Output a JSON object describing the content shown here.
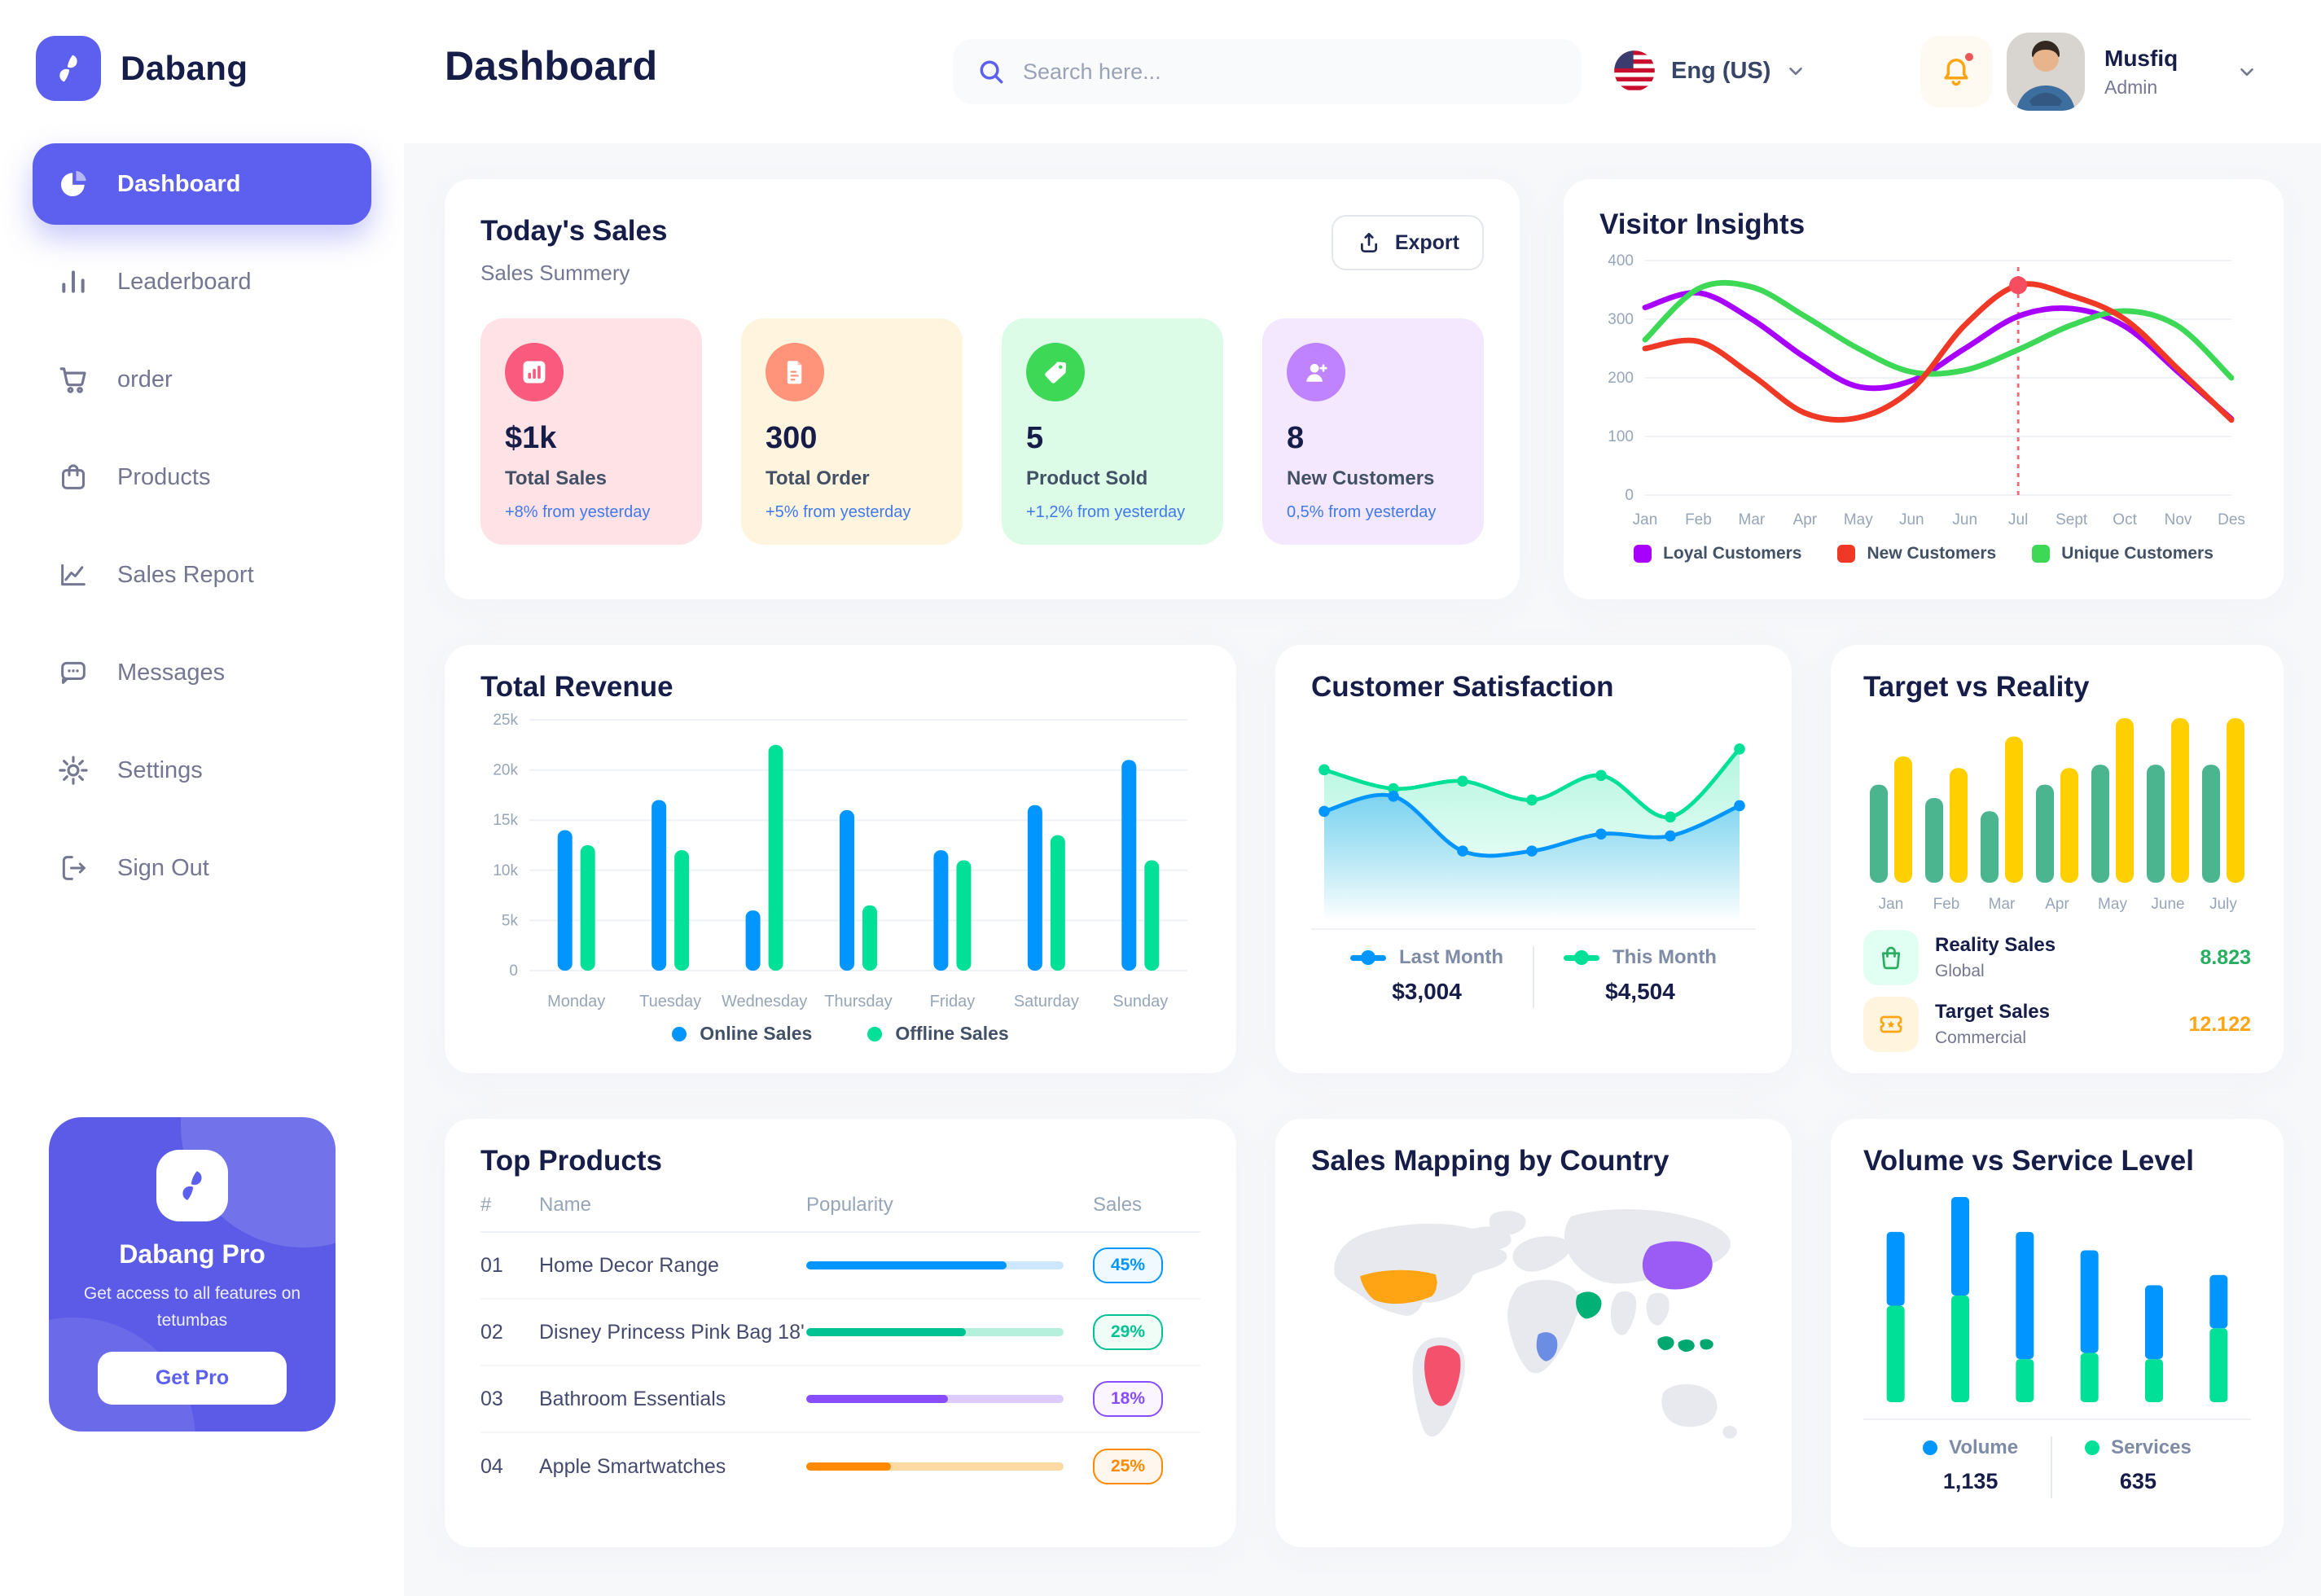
{
  "app": {
    "brand": "Dabang",
    "accent_color": "#5D5FEF"
  },
  "header": {
    "title": "Dashboard",
    "search": {
      "placeholder": "Search here..."
    },
    "language": {
      "label": "Eng (US)"
    },
    "user": {
      "name": "Musfiq",
      "role": "Admin"
    }
  },
  "sidebar": {
    "items": [
      {
        "label": "Dashboard",
        "icon": "pie-chart-icon",
        "active": true
      },
      {
        "label": "Leaderboard",
        "icon": "bar-chart-icon",
        "active": false
      },
      {
        "label": "order",
        "icon": "cart-icon",
        "active": false
      },
      {
        "label": "Products",
        "icon": "bag-icon",
        "active": false
      },
      {
        "label": "Sales Report",
        "icon": "line-chart-icon",
        "active": false
      },
      {
        "label": "Messages",
        "icon": "message-icon",
        "active": false
      },
      {
        "label": "Settings",
        "icon": "gear-icon",
        "active": false
      },
      {
        "label": "Sign Out",
        "icon": "sign-out-icon",
        "active": false
      }
    ],
    "pro_card": {
      "title": "Dabang Pro",
      "description": "Get access to all features on tetumbas",
      "cta": "Get Pro"
    }
  },
  "todays_sales": {
    "title": "Today's Sales",
    "subtitle": "Sales Summery",
    "export_label": "Export",
    "cards": [
      {
        "value": "$1k",
        "label": "Total Sales",
        "delta": "+8% from yesterday",
        "bg": "#FFE2E5",
        "icon_bg": "#FA5A7D",
        "icon": "stats-icon"
      },
      {
        "value": "300",
        "label": "Total Order",
        "delta": "+5% from yesterday",
        "bg": "#FFF4DE",
        "icon_bg": "#FF947A",
        "icon": "receipt-icon"
      },
      {
        "value": "5",
        "label": "Product Sold",
        "delta": "+1,2% from yesterday",
        "bg": "#DCFCE7",
        "icon_bg": "#3CD856",
        "icon": "tag-icon"
      },
      {
        "value": "8",
        "label": "New Customers",
        "delta": "0,5% from yesterday",
        "bg": "#F3E8FF",
        "icon_bg": "#BF83FF",
        "icon": "user-plus-icon"
      }
    ]
  },
  "charts": {
    "visitor_insights": {
      "title": "Visitor Insights",
      "type": "line",
      "categories": [
        "Jan",
        "Feb",
        "Mar",
        "Apr",
        "May",
        "Jun",
        "Jun",
        "Jul",
        "Sept",
        "Oct",
        "Nov",
        "Des"
      ],
      "ylim": [
        0,
        400
      ],
      "yticks": [
        0,
        100,
        200,
        300,
        400
      ],
      "series": [
        {
          "name": "Loyal Customers",
          "color": "#A700FF",
          "values": [
            320,
            345,
            300,
            235,
            185,
            195,
            250,
            305,
            318,
            288,
            210,
            130
          ]
        },
        {
          "name": "New Customers",
          "color": "#EF3826",
          "values": [
            250,
            262,
            205,
            140,
            132,
            180,
            290,
            358,
            340,
            300,
            215,
            128
          ]
        },
        {
          "name": "Unique Customers",
          "color": "#3CD856",
          "values": [
            265,
            352,
            355,
            305,
            250,
            210,
            213,
            248,
            290,
            314,
            288,
            200
          ]
        }
      ],
      "highlight": {
        "category_index": 7,
        "series": "New Customers",
        "marker_color": "#F64E60"
      }
    },
    "total_revenue": {
      "title": "Total Revenue",
      "type": "bar",
      "categories": [
        "Monday",
        "Tuesday",
        "Wednesday",
        "Thursday",
        "Friday",
        "Saturday",
        "Sunday"
      ],
      "ylim": [
        0,
        25
      ],
      "ytick_labels": [
        "0",
        "5k",
        "10k",
        "15k",
        "20k",
        "25k"
      ],
      "series": [
        {
          "name": "Online Sales",
          "color": "#0095FF",
          "values": [
            14,
            17,
            6,
            16,
            12,
            16.5,
            21
          ]
        },
        {
          "name": "Offline Sales",
          "color": "#00E096",
          "values": [
            12.5,
            12,
            22.5,
            6.5,
            11,
            13.5,
            11
          ]
        }
      ]
    },
    "customer_satisfaction": {
      "title": "Customer Satisfaction",
      "type": "area",
      "series": [
        {
          "name": "Last Month",
          "total": "$3,004",
          "color": "#0095FF",
          "values": [
            55,
            63,
            34,
            34,
            43,
            42,
            58
          ]
        },
        {
          "name": "This Month",
          "total": "$4,504",
          "color": "#00E096",
          "values": [
            77,
            67,
            71,
            61,
            74,
            52,
            88
          ]
        }
      ]
    },
    "target_vs_reality": {
      "title": "Target vs Reality",
      "type": "bar",
      "categories": [
        "Jan",
        "Feb",
        "Mar",
        "Apr",
        "May",
        "June",
        "July"
      ],
      "series": [
        {
          "name": "Reality Sales",
          "color": "#4AB58E",
          "values": [
            5.9,
            5.1,
            4.3,
            5.9,
            7.1,
            7.1,
            7.1
          ]
        },
        {
          "name": "Target Sales",
          "color": "#FFCF00",
          "values": [
            7.6,
            6.9,
            8.8,
            6.9,
            9.9,
            9.9,
            9.9
          ]
        }
      ],
      "legend": [
        {
          "label": "Reality Sales",
          "sub": "Global",
          "value": "8.823",
          "value_color": "#27AE60",
          "icon_bg": "#E2FFF3",
          "icon": "bag-icon"
        },
        {
          "label": "Target Sales",
          "sub": "Commercial",
          "value": "12.122",
          "value_color": "#FFA412",
          "icon_bg": "#FFF4DE",
          "icon": "ticket-icon"
        }
      ]
    },
    "volume_service": {
      "title": "Volume vs Service Level",
      "type": "stacked-bar",
      "series": [
        {
          "name": "Volume",
          "color": "#0095FF",
          "values": [
            36,
            48,
            62,
            50,
            36,
            26
          ]
        },
        {
          "name": "Services",
          "color": "#00E096",
          "values": [
            47,
            52,
            21,
            24,
            21,
            36
          ]
        }
      ],
      "legend": [
        {
          "label": "Volume",
          "value": "1,135",
          "color": "#0095FF"
        },
        {
          "label": "Services",
          "value": "635",
          "color": "#00E096"
        }
      ]
    }
  },
  "top_products": {
    "title": "Top Products",
    "headers": [
      "#",
      "Name",
      "Popularity",
      "Sales"
    ],
    "rows": [
      {
        "num": "01",
        "name": "Home Decor Range",
        "popularity": 78,
        "sales": "45%",
        "color": "#0095FF",
        "track": "#CDE7FF",
        "badge_bg": "#F0F9FF"
      },
      {
        "num": "02",
        "name": "Disney Princess Pink Bag 18'",
        "popularity": 62,
        "sales": "29%",
        "color": "#00C292",
        "track": "#B5F0DD",
        "badge_bg": "#F0FDF7"
      },
      {
        "num": "03",
        "name": "Bathroom Essentials",
        "popularity": 55,
        "sales": "18%",
        "color": "#884DFF",
        "track": "#DCCCFF",
        "badge_bg": "#FAF5FF"
      },
      {
        "num": "04",
        "name": "Apple Smartwatches",
        "popularity": 33,
        "sales": "25%",
        "color": "#FF8900",
        "track": "#FFD9A3",
        "badge_bg": "#FFF7ED"
      }
    ]
  },
  "sales_mapping": {
    "title": "Sales Mapping by Country",
    "countries": [
      {
        "name": "United States",
        "color": "#FFA412"
      },
      {
        "name": "Brazil",
        "color": "#F4516C"
      },
      {
        "name": "Saudi Arabia",
        "color": "#00B074"
      },
      {
        "name": "DR Congo",
        "color": "#6B8DE3"
      },
      {
        "name": "China",
        "color": "#9B5CF6"
      },
      {
        "name": "Indonesia",
        "color": "#00A76F"
      }
    ]
  }
}
